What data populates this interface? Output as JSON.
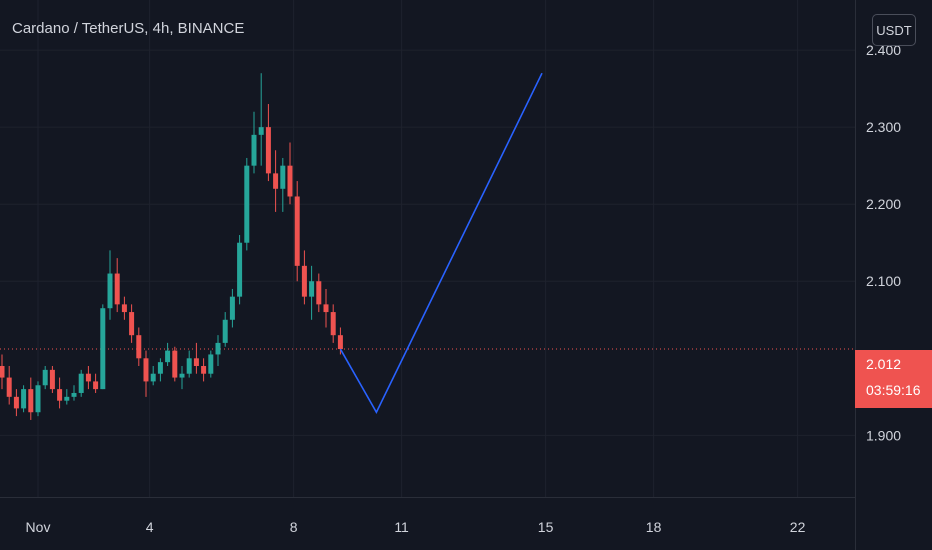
{
  "header": {
    "title": "Cardano / TetherUS, 4h, BINANCE"
  },
  "currency_button": {
    "label": "USDT"
  },
  "price_tag": {
    "price": "2.012",
    "countdown": "03:59:16"
  },
  "colors": {
    "up": "#26a69a",
    "down": "#ef5350",
    "drawing": "#2962ff",
    "background": "#131722",
    "text": "#d1d4dc"
  },
  "chart_data": {
    "type": "candlestick",
    "title": "Cardano / TetherUS, 4h, BINANCE",
    "y_ticks": [
      "2.400",
      "2.300",
      "2.200",
      "2.100",
      "1.900"
    ],
    "x_ticks": [
      "Nov",
      "4",
      "8",
      "11",
      "15",
      "18",
      "22"
    ],
    "ylim": [
      1.82,
      2.465
    ],
    "last_price": 2.012,
    "series": [
      {
        "candles": [
          [
            1.99,
            2.005,
            1.96,
            1.975
          ],
          [
            1.975,
            1.99,
            1.94,
            1.95
          ],
          [
            1.95,
            1.96,
            1.925,
            1.935
          ],
          [
            1.935,
            1.965,
            1.93,
            1.96
          ],
          [
            1.96,
            1.975,
            1.92,
            1.93
          ],
          [
            1.93,
            1.97,
            1.925,
            1.965
          ],
          [
            1.965,
            1.99,
            1.96,
            1.985
          ],
          [
            1.985,
            1.99,
            1.955,
            1.96
          ],
          [
            1.96,
            1.975,
            1.935,
            1.945
          ],
          [
            1.945,
            1.96,
            1.94,
            1.95
          ],
          [
            1.95,
            1.965,
            1.945,
            1.955
          ],
          [
            1.955,
            1.985,
            1.95,
            1.98
          ],
          [
            1.98,
            1.99,
            1.96,
            1.97
          ],
          [
            1.97,
            1.98,
            1.955,
            1.96
          ],
          [
            1.96,
            2.07,
            1.96,
            2.065
          ],
          [
            2.065,
            2.14,
            2.05,
            2.11
          ],
          [
            2.11,
            2.13,
            2.06,
            2.07
          ],
          [
            2.07,
            2.08,
            2.05,
            2.06
          ],
          [
            2.06,
            2.07,
            2.02,
            2.03
          ],
          [
            2.03,
            2.04,
            1.99,
            2.0
          ],
          [
            2.0,
            2.01,
            1.95,
            1.97
          ],
          [
            1.97,
            1.99,
            1.965,
            1.98
          ],
          [
            1.98,
            2.0,
            1.97,
            1.995
          ],
          [
            1.995,
            2.02,
            1.99,
            2.01
          ],
          [
            2.01,
            2.015,
            1.97,
            1.975
          ],
          [
            1.975,
            1.99,
            1.96,
            1.98
          ],
          [
            1.98,
            2.01,
            1.975,
            2.0
          ],
          [
            2.0,
            2.02,
            1.98,
            1.99
          ],
          [
            1.99,
            2.0,
            1.97,
            1.98
          ],
          [
            1.98,
            2.01,
            1.975,
            2.005
          ],
          [
            2.005,
            2.03,
            1.99,
            2.02
          ],
          [
            2.02,
            2.06,
            2.015,
            2.05
          ],
          [
            2.05,
            2.09,
            2.04,
            2.08
          ],
          [
            2.08,
            2.16,
            2.07,
            2.15
          ],
          [
            2.15,
            2.26,
            2.14,
            2.25
          ],
          [
            2.25,
            2.32,
            2.24,
            2.29
          ],
          [
            2.29,
            2.37,
            2.25,
            2.3
          ],
          [
            2.3,
            2.33,
            2.23,
            2.24
          ],
          [
            2.24,
            2.27,
            2.19,
            2.22
          ],
          [
            2.22,
            2.26,
            2.19,
            2.25
          ],
          [
            2.25,
            2.28,
            2.2,
            2.21
          ],
          [
            2.21,
            2.23,
            2.1,
            2.12
          ],
          [
            2.12,
            2.14,
            2.07,
            2.08
          ],
          [
            2.08,
            2.12,
            2.05,
            2.1
          ],
          [
            2.1,
            2.11,
            2.06,
            2.07
          ],
          [
            2.07,
            2.09,
            2.04,
            2.06
          ],
          [
            2.06,
            2.07,
            2.02,
            2.03
          ],
          [
            2.03,
            2.04,
            2.005,
            2.012
          ]
        ]
      }
    ],
    "projection": [
      [
        2.012,
        0
      ],
      [
        1.93,
        5
      ],
      [
        2.37,
        28
      ]
    ]
  }
}
